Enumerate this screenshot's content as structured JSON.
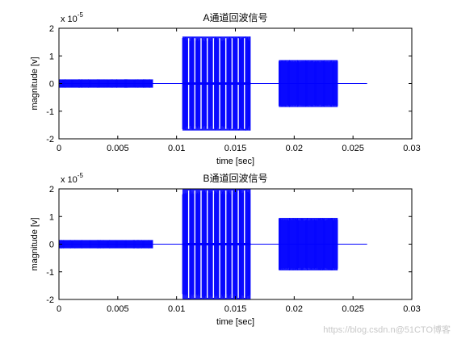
{
  "colors": {
    "signal": "#0000ff",
    "axes": "#000000",
    "background": "#ffffff"
  },
  "watermark": "https://blog.csdn.n@51CTO博客",
  "chart_data": [
    {
      "type": "line",
      "title": "A通道回波信号",
      "xlabel": "time [sec]",
      "ylabel": "magnitude [v]",
      "exponent_label": "x 10",
      "exponent_power": "-5",
      "xlim": [
        0,
        0.03
      ],
      "ylim": [
        -2,
        2
      ],
      "xticks": [
        0,
        0.005,
        0.01,
        0.015,
        0.02,
        0.025,
        0.03
      ],
      "xtick_labels": [
        "0",
        "0.005",
        "0.01",
        "0.015",
        "0.02",
        "0.025",
        "0.03"
      ],
      "yticks": [
        -2,
        -1,
        0,
        1,
        2
      ],
      "ytick_labels": [
        "-2",
        "-1",
        "0",
        "1",
        "2"
      ],
      "signal_end": 0.0262,
      "segments": [
        {
          "start": 0.0,
          "end": 0.008,
          "amplitude": 0.15
        },
        {
          "start": 0.0105,
          "end": 0.0163,
          "amplitude": 1.7
        },
        {
          "start": 0.0187,
          "end": 0.0237,
          "amplitude": 0.85
        }
      ]
    },
    {
      "type": "line",
      "title": "B通道回波信号",
      "xlabel": "time [sec]",
      "ylabel": "magnitude [v]",
      "exponent_label": "x 10",
      "exponent_power": "-5",
      "xlim": [
        0,
        0.03
      ],
      "ylim": [
        -2,
        2
      ],
      "xticks": [
        0,
        0.005,
        0.01,
        0.015,
        0.02,
        0.025,
        0.03
      ],
      "xtick_labels": [
        "0",
        "0.005",
        "0.01",
        "0.015",
        "0.02",
        "0.025",
        "0.03"
      ],
      "yticks": [
        -2,
        -1,
        0,
        1,
        2
      ],
      "ytick_labels": [
        "-2",
        "-1",
        "0",
        "1",
        "2"
      ],
      "signal_end": 0.0262,
      "segments": [
        {
          "start": 0.0,
          "end": 0.008,
          "amplitude": 0.15
        },
        {
          "start": 0.0105,
          "end": 0.0163,
          "amplitude": 2.0
        },
        {
          "start": 0.0187,
          "end": 0.0237,
          "amplitude": 0.95
        }
      ]
    }
  ]
}
